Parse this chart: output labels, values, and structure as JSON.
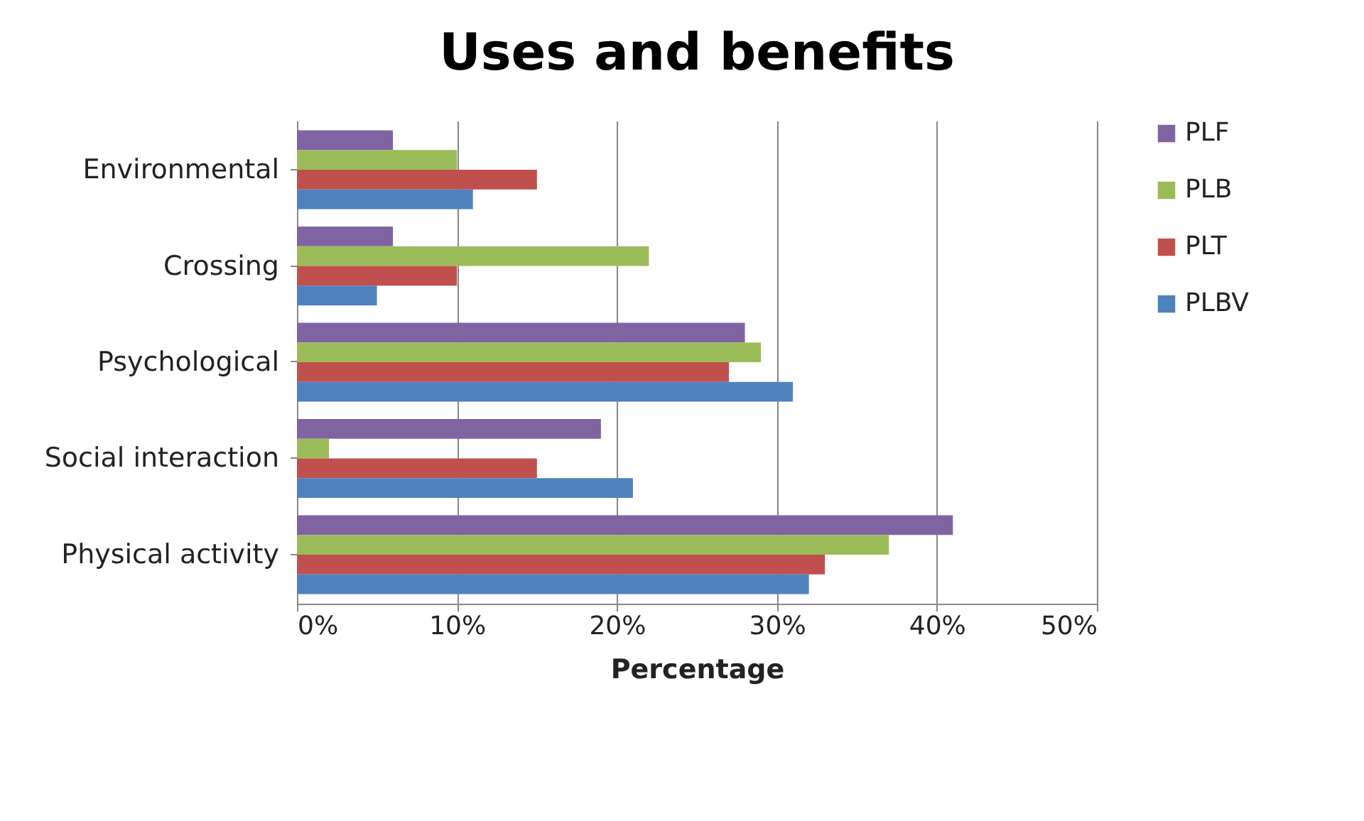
{
  "chart_data": {
    "type": "bar",
    "orientation": "horizontal",
    "title": "Uses and benefits",
    "xlabel": "Percentage",
    "categories": [
      "Environmental",
      "Crossing",
      "Psychological",
      "Social interaction",
      "Physical activity"
    ],
    "series": [
      {
        "name": "PLF",
        "color": "#8064a2",
        "values": [
          6,
          6,
          28,
          19,
          41
        ]
      },
      {
        "name": "PLB",
        "color": "#9bbb59",
        "values": [
          10,
          22,
          29,
          2,
          37
        ]
      },
      {
        "name": "PLT",
        "color": "#c0504d",
        "values": [
          15,
          10,
          27,
          15,
          33
        ]
      },
      {
        "name": "PLBV",
        "color": "#4f81bd",
        "values": [
          11,
          5,
          31,
          21,
          32
        ]
      }
    ],
    "xlim": [
      0,
      50
    ],
    "xticks": [
      {
        "value": 0,
        "label": "0%"
      },
      {
        "value": 10,
        "label": "10%"
      },
      {
        "value": 20,
        "label": "20%"
      },
      {
        "value": 30,
        "label": "30%"
      },
      {
        "value": 40,
        "label": "40%"
      },
      {
        "value": 50,
        "label": "50%"
      }
    ],
    "grid": "x",
    "legend": "right"
  }
}
